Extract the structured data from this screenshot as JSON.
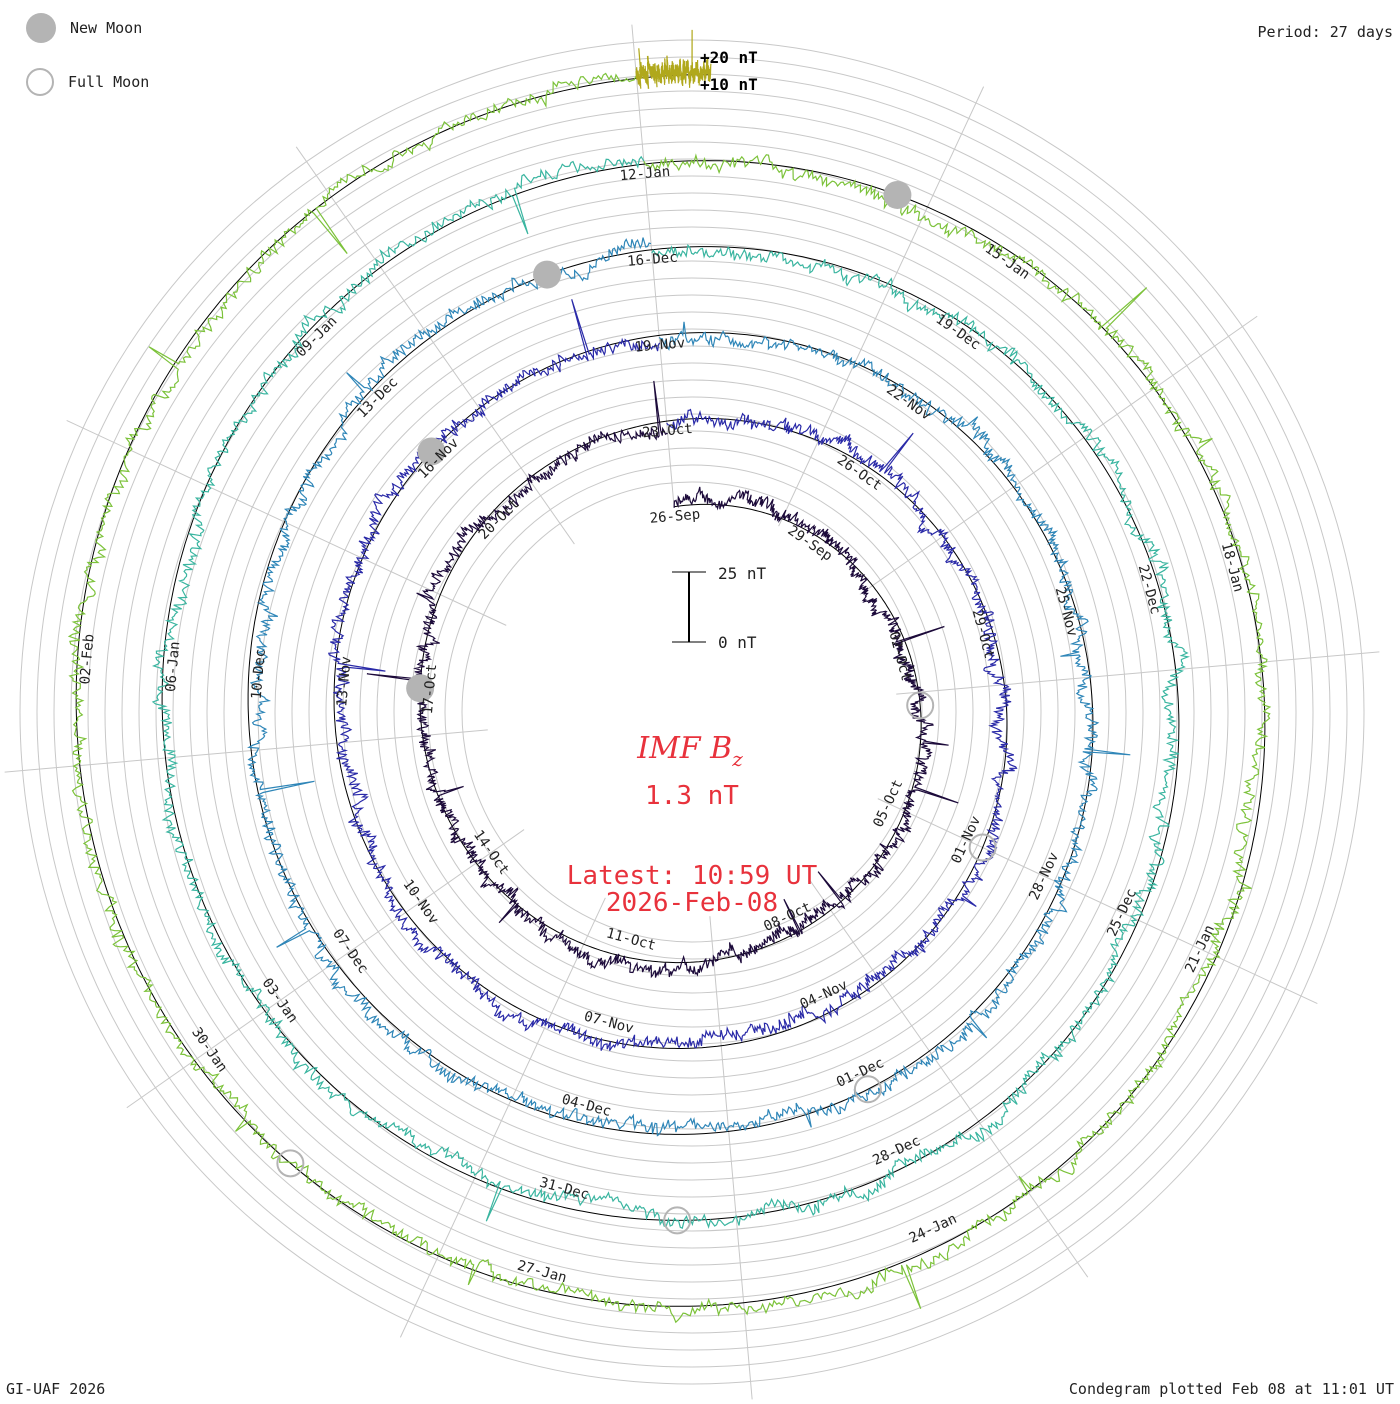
{
  "legend": {
    "new_moon": "New Moon",
    "full_moon": "Full Moon"
  },
  "period": "Period: 27 days",
  "footer_left": "GI-UAF 2026",
  "footer_right": "Condegram plotted Feb 08 at 11:01 UT",
  "scale_ref": {
    "plus20": "+20 nT",
    "plus10": "+10 nT"
  },
  "scalebar": {
    "top": "25 nT",
    "bottom": "0 nT"
  },
  "center": {
    "title": "IMF B",
    "subscript": "z",
    "value": "1.3 nT",
    "latest": "Latest: 10:59 UT",
    "date": "2026-Feb-08"
  },
  "colors": {
    "moon": "#b4b4b4",
    "accent": "#e8323c",
    "rings": [
      "#1c0a3a",
      "#2a2aa8",
      "#2f86b8",
      "#3ab5a0",
      "#7cc23a",
      "#b0a81c",
      "#c8781a",
      "#b82010"
    ]
  },
  "chart_data": {
    "type": "condegram",
    "title": "IMF Bz",
    "period_days": 27,
    "latest_value_nT": 1.3,
    "start": "2025-09-26",
    "end": "2026-02-08",
    "date_labels": [
      {
        "label": "26-Sep",
        "day": 0
      },
      {
        "label": "29-Sep",
        "day": 3
      },
      {
        "label": "02-Oct",
        "day": 6
      },
      {
        "label": "05-Oct",
        "day": 9
      },
      {
        "label": "08-Oct",
        "day": 12
      },
      {
        "label": "11-Oct",
        "day": 15
      },
      {
        "label": "14-Oct",
        "day": 18
      },
      {
        "label": "17-Oct",
        "day": 21
      },
      {
        "label": "20-Oct",
        "day": 24
      },
      {
        "label": "23-Oct",
        "day": 27
      },
      {
        "label": "26-Oct",
        "day": 30
      },
      {
        "label": "29-Oct",
        "day": 33
      },
      {
        "label": "01-Nov",
        "day": 36
      },
      {
        "label": "04-Nov",
        "day": 39
      },
      {
        "label": "07-Nov",
        "day": 42
      },
      {
        "label": "10-Nov",
        "day": 45
      },
      {
        "label": "13-Nov",
        "day": 48
      },
      {
        "label": "16-Nov",
        "day": 51
      },
      {
        "label": "19-Nov",
        "day": 54
      },
      {
        "label": "22-Nov",
        "day": 57
      },
      {
        "label": "25-Nov",
        "day": 60
      },
      {
        "label": "28-Nov",
        "day": 63
      },
      {
        "label": "01-Dec",
        "day": 66
      },
      {
        "label": "04-Dec",
        "day": 69
      },
      {
        "label": "07-Dec",
        "day": 72
      },
      {
        "label": "10-Dec",
        "day": 75
      },
      {
        "label": "13-Dec",
        "day": 78
      },
      {
        "label": "16-Dec",
        "day": 81
      },
      {
        "label": "19-Dec",
        "day": 84
      },
      {
        "label": "22-Dec",
        "day": 87
      },
      {
        "label": "25-Dec",
        "day": 90
      },
      {
        "label": "28-Dec",
        "day": 93
      },
      {
        "label": "31-Dec",
        "day": 96
      },
      {
        "label": "03-Jan",
        "day": 99
      },
      {
        "label": "06-Jan",
        "day": 102
      },
      {
        "label": "09-Jan",
        "day": 105
      },
      {
        "label": "12-Jan",
        "day": 108
      },
      {
        "label": "15-Jan",
        "day": 111
      },
      {
        "label": "18-Jan",
        "day": 114
      },
      {
        "label": "21-Jan",
        "day": 117
      },
      {
        "label": "24-Jan",
        "day": 120
      },
      {
        "label": "27-Jan",
        "day": 123
      },
      {
        "label": "30-Jan",
        "day": 126
      },
      {
        "label": "02-Feb",
        "day": 129
      }
    ],
    "new_moons": [
      21,
      51,
      80,
      110
    ],
    "full_moons": [
      7,
      36,
      66,
      95,
      125
    ],
    "scale": {
      "reference_levels_nT": [
        10,
        20
      ],
      "bar_nT": [
        0,
        25
      ]
    }
  }
}
